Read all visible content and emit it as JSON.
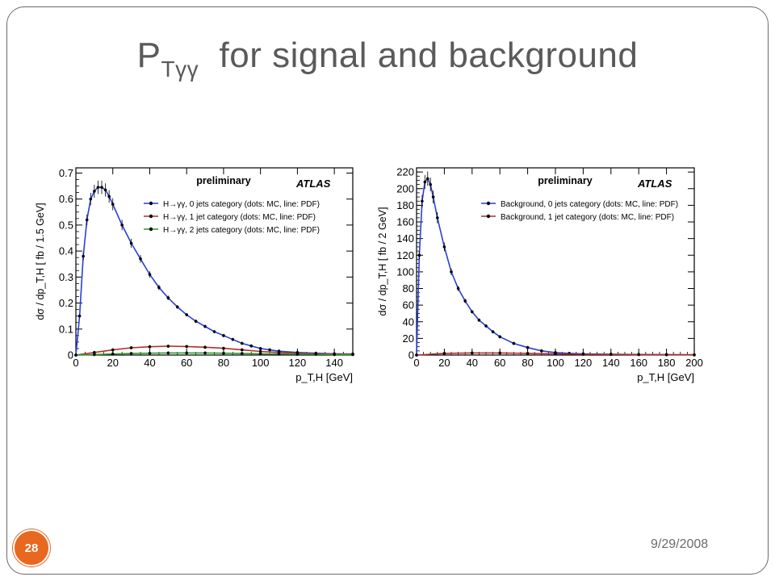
{
  "slide": {
    "title_main": "P",
    "title_sub": "Tγγ",
    "title_rest": "for signal and background",
    "number": "28",
    "date": "9/29/2008"
  },
  "colors": {
    "accent": "#e8681f",
    "series_blue": "#2a3fd6",
    "series_red": "#b2302a",
    "series_green": "#2b9a2b"
  },
  "chart_data": [
    {
      "type": "line",
      "brand": "ATLAS",
      "annotation": "preliminary",
      "xlabel": "p_T,H [GeV]",
      "ylabel": "dσ / dp_T,H  [ fb / 1.5 GeV]",
      "xlim": [
        0,
        150
      ],
      "ylim": [
        0,
        0.72
      ],
      "xticks": [
        0,
        20,
        40,
        60,
        80,
        100,
        120,
        140
      ],
      "yticks": [
        0,
        0.1,
        0.2,
        0.3,
        0.4,
        0.5,
        0.6,
        0.7
      ],
      "legend_position": "top-right",
      "series": [
        {
          "name": "H→γγ, 0 jets category (dots: MC, line: PDF)",
          "color": "#2a3fd6",
          "x": [
            0,
            2,
            4,
            6,
            8,
            10,
            12,
            14,
            16,
            18,
            20,
            25,
            30,
            35,
            40,
            45,
            50,
            55,
            60,
            65,
            70,
            75,
            80,
            85,
            90,
            95,
            100,
            105,
            110,
            120,
            130,
            140,
            150
          ],
          "y": [
            0.0,
            0.15,
            0.38,
            0.52,
            0.6,
            0.63,
            0.645,
            0.645,
            0.635,
            0.61,
            0.58,
            0.5,
            0.43,
            0.37,
            0.31,
            0.26,
            0.22,
            0.185,
            0.155,
            0.13,
            0.11,
            0.09,
            0.075,
            0.06,
            0.045,
            0.035,
            0.025,
            0.02,
            0.015,
            0.01,
            0.007,
            0.005,
            0.004
          ]
        },
        {
          "name": "H→γγ, 1 jet category (dots: MC, line: PDF)",
          "color": "#b2302a",
          "x": [
            0,
            10,
            20,
            30,
            40,
            50,
            60,
            70,
            80,
            90,
            100,
            110,
            120,
            130,
            140,
            150
          ],
          "y": [
            0.0,
            0.01,
            0.02,
            0.028,
            0.032,
            0.034,
            0.033,
            0.03,
            0.026,
            0.02,
            0.014,
            0.01,
            0.007,
            0.005,
            0.004,
            0.003
          ]
        },
        {
          "name": "H→γγ, 2 jets category (dots: MC, line: PDF)",
          "color": "#2b9a2b",
          "x": [
            0,
            10,
            20,
            30,
            40,
            50,
            60,
            70,
            80,
            90,
            100,
            110,
            120,
            130,
            140,
            150
          ],
          "y": [
            0.0,
            0.002,
            0.004,
            0.006,
            0.007,
            0.008,
            0.008,
            0.008,
            0.007,
            0.006,
            0.005,
            0.004,
            0.003,
            0.003,
            0.002,
            0.002
          ]
        }
      ]
    },
    {
      "type": "line",
      "brand": "ATLAS",
      "annotation": "preliminary",
      "xlabel": "p_T,H [GeV]",
      "ylabel": "dσ / dp_T,H  [ fb / 2 GeV]",
      "xlim": [
        0,
        200
      ],
      "ylim": [
        0,
        225
      ],
      "xticks": [
        0,
        20,
        40,
        60,
        80,
        100,
        120,
        140,
        160,
        180,
        200
      ],
      "yticks": [
        0,
        20,
        40,
        60,
        80,
        100,
        120,
        140,
        160,
        180,
        200,
        220
      ],
      "legend_position": "top-right",
      "series": [
        {
          "name": "Background, 0 jets category (dots: MC, line: PDF)",
          "color": "#2a3fd6",
          "x": [
            0,
            2,
            4,
            6,
            8,
            10,
            12,
            15,
            20,
            25,
            30,
            35,
            40,
            45,
            50,
            55,
            60,
            70,
            80,
            90,
            100,
            110,
            120,
            140,
            160,
            180,
            200
          ],
          "y": [
            0,
            120,
            185,
            208,
            212,
            205,
            190,
            165,
            130,
            100,
            80,
            65,
            52,
            42,
            35,
            28,
            22,
            14,
            9,
            5,
            3,
            2,
            1.5,
            1,
            0.7,
            0.5,
            0.3
          ]
        },
        {
          "name": "Background, 1 jet category (dots: MC, line: PDF)",
          "color": "#b2302a",
          "x": [
            0,
            20,
            40,
            60,
            80,
            100,
            120,
            140,
            160,
            180,
            200
          ],
          "y": [
            0,
            2,
            2.5,
            2.5,
            2,
            1.5,
            1,
            0.8,
            0.6,
            0.4,
            0.3
          ]
        }
      ]
    }
  ]
}
